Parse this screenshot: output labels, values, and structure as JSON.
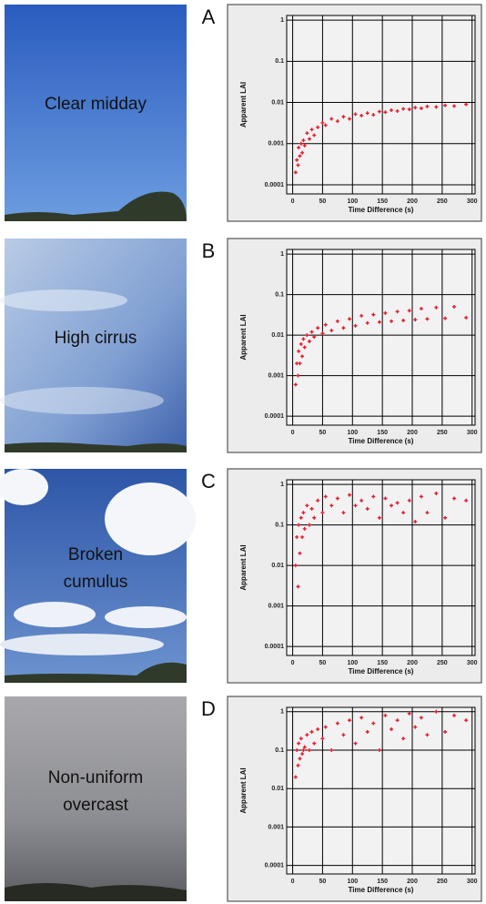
{
  "chart_data": [
    {
      "type": "scatter",
      "panel": "A",
      "sky_label": [
        "Clear midday"
      ],
      "xlabel": "Time Difference (s)",
      "ylabel": "Apparent LAI",
      "color": "#e8192c",
      "log_y": true,
      "grid": true,
      "xlim": [
        -10,
        305
      ],
      "ylim": [
        6e-05,
        1.3
      ],
      "xticks": [
        0,
        50,
        100,
        150,
        200,
        250,
        300
      ],
      "yticks": [
        0.0001,
        0.001,
        0.01,
        0.1,
        1
      ],
      "x": [
        5,
        7,
        9,
        10,
        12,
        14,
        16,
        18,
        20,
        24,
        28,
        32,
        36,
        42,
        50,
        55,
        65,
        75,
        85,
        95,
        105,
        115,
        125,
        135,
        145,
        155,
        165,
        175,
        185,
        195,
        205,
        215,
        225,
        240,
        255,
        270,
        290
      ],
      "values": [
        0.0002,
        0.0004,
        0.0003,
        0.0008,
        0.0005,
        0.001,
        0.0006,
        0.0012,
        0.0009,
        0.0018,
        0.0013,
        0.0022,
        0.0016,
        0.0025,
        0.0032,
        0.0028,
        0.004,
        0.0035,
        0.0045,
        0.004,
        0.0052,
        0.0048,
        0.0055,
        0.005,
        0.006,
        0.0058,
        0.0065,
        0.0062,
        0.007,
        0.0068,
        0.0075,
        0.0072,
        0.008,
        0.0078,
        0.0085,
        0.0082,
        0.009
      ]
    },
    {
      "type": "scatter",
      "panel": "B",
      "sky_label": [
        "High cirrus"
      ],
      "xlabel": "Time Difference (s)",
      "ylabel": "Apparent LAI",
      "color": "#e8192c",
      "log_y": true,
      "grid": true,
      "xlim": [
        -10,
        305
      ],
      "ylim": [
        6e-05,
        1.3
      ],
      "xticks": [
        0,
        50,
        100,
        150,
        200,
        250,
        300
      ],
      "yticks": [
        0.0001,
        0.001,
        0.01,
        0.1,
        1
      ],
      "x": [
        5,
        7,
        9,
        10,
        12,
        14,
        16,
        18,
        20,
        24,
        28,
        32,
        36,
        42,
        50,
        55,
        65,
        75,
        85,
        95,
        105,
        115,
        125,
        135,
        145,
        155,
        165,
        175,
        185,
        195,
        205,
        215,
        225,
        240,
        255,
        270,
        290
      ],
      "values": [
        0.0006,
        0.002,
        0.001,
        0.004,
        0.002,
        0.006,
        0.003,
        0.008,
        0.005,
        0.01,
        0.007,
        0.012,
        0.009,
        0.015,
        0.011,
        0.018,
        0.013,
        0.022,
        0.015,
        0.025,
        0.017,
        0.03,
        0.02,
        0.032,
        0.021,
        0.035,
        0.022,
        0.038,
        0.023,
        0.04,
        0.024,
        0.045,
        0.025,
        0.048,
        0.026,
        0.05,
        0.027
      ]
    },
    {
      "type": "scatter",
      "panel": "C",
      "sky_label": [
        "Broken",
        "cumulus"
      ],
      "xlabel": "Time Difference (s)",
      "ylabel": "Apparent LAI",
      "color": "#e8192c",
      "log_y": true,
      "grid": true,
      "xlim": [
        -10,
        305
      ],
      "ylim": [
        6e-05,
        1.3
      ],
      "xticks": [
        0,
        50,
        100,
        150,
        200,
        250,
        300
      ],
      "yticks": [
        0.0001,
        0.001,
        0.01,
        0.1,
        1
      ],
      "x": [
        5,
        7,
        9,
        10,
        12,
        14,
        16,
        18,
        20,
        24,
        28,
        32,
        36,
        42,
        50,
        55,
        65,
        75,
        85,
        95,
        105,
        115,
        125,
        135,
        145,
        155,
        165,
        175,
        185,
        195,
        205,
        215,
        225,
        240,
        255,
        270,
        290
      ],
      "values": [
        0.01,
        0.05,
        0.003,
        0.1,
        0.02,
        0.15,
        0.05,
        0.2,
        0.08,
        0.3,
        0.1,
        0.25,
        0.15,
        0.4,
        0.2,
        0.5,
        0.3,
        0.45,
        0.2,
        0.55,
        0.3,
        0.4,
        0.25,
        0.5,
        0.15,
        0.45,
        0.3,
        0.35,
        0.2,
        0.4,
        0.12,
        0.5,
        0.2,
        0.6,
        0.15,
        0.45,
        0.4
      ]
    },
    {
      "type": "scatter",
      "panel": "D",
      "sky_label": [
        "Non-uniform",
        "overcast"
      ],
      "xlabel": "Time Difference (s)",
      "ylabel": "Apparent LAI",
      "color": "#e8192c",
      "log_y": true,
      "grid": true,
      "xlim": [
        -10,
        305
      ],
      "ylim": [
        6e-05,
        1.3
      ],
      "xticks": [
        0,
        50,
        100,
        150,
        200,
        250,
        300
      ],
      "yticks": [
        0.0001,
        0.001,
        0.01,
        0.1,
        1
      ],
      "x": [
        5,
        7,
        9,
        10,
        12,
        14,
        16,
        18,
        20,
        24,
        28,
        32,
        36,
        42,
        50,
        55,
        65,
        75,
        85,
        95,
        105,
        115,
        125,
        135,
        145,
        155,
        165,
        175,
        185,
        195,
        205,
        215,
        225,
        240,
        255,
        270,
        290
      ],
      "values": [
        0.02,
        0.1,
        0.04,
        0.15,
        0.06,
        0.2,
        0.08,
        0.1,
        0.12,
        0.25,
        0.1,
        0.3,
        0.15,
        0.35,
        0.2,
        0.4,
        0.1,
        0.5,
        0.25,
        0.6,
        0.15,
        0.7,
        0.3,
        0.5,
        0.1,
        0.8,
        0.35,
        0.6,
        0.2,
        0.9,
        0.4,
        0.7,
        0.25,
        1,
        0.3,
        0.8,
        0.6
      ]
    }
  ]
}
